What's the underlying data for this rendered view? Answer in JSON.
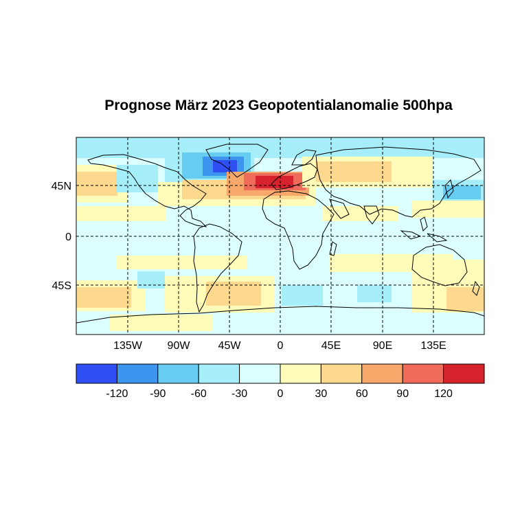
{
  "map": {
    "title": "Prognose März 2023 Geopotentialanomalie 500hpa",
    "lat_labels": [
      "45N",
      "0",
      "45S"
    ],
    "lon_labels": [
      "135W",
      "90W",
      "45W",
      "0",
      "45E",
      "90E",
      "135E"
    ],
    "extent": {
      "lon": [
        -180,
        180
      ],
      "lat": [
        -82,
        82
      ]
    }
  },
  "colorbar": {
    "colors": [
      "#2f4ff2",
      "#3d95f0",
      "#66ccf2",
      "#a6eef9",
      "#dcffff",
      "#fffbb9",
      "#fcd98f",
      "#f9a86b",
      "#ef6b5a",
      "#d7232e"
    ],
    "labels": [
      "-120",
      "-90",
      "-60",
      "-30",
      "0",
      "30",
      "60",
      "90",
      "120"
    ]
  },
  "anomaly_regions": [
    {
      "name": "Greenland / Labrador low",
      "class": "-120"
    },
    {
      "name": "Western Europe high",
      "class": "120"
    },
    {
      "name": "North Pacific high",
      "class": "60"
    },
    {
      "name": "Southern Ocean high (South Pacific)",
      "class": "60"
    }
  ]
}
